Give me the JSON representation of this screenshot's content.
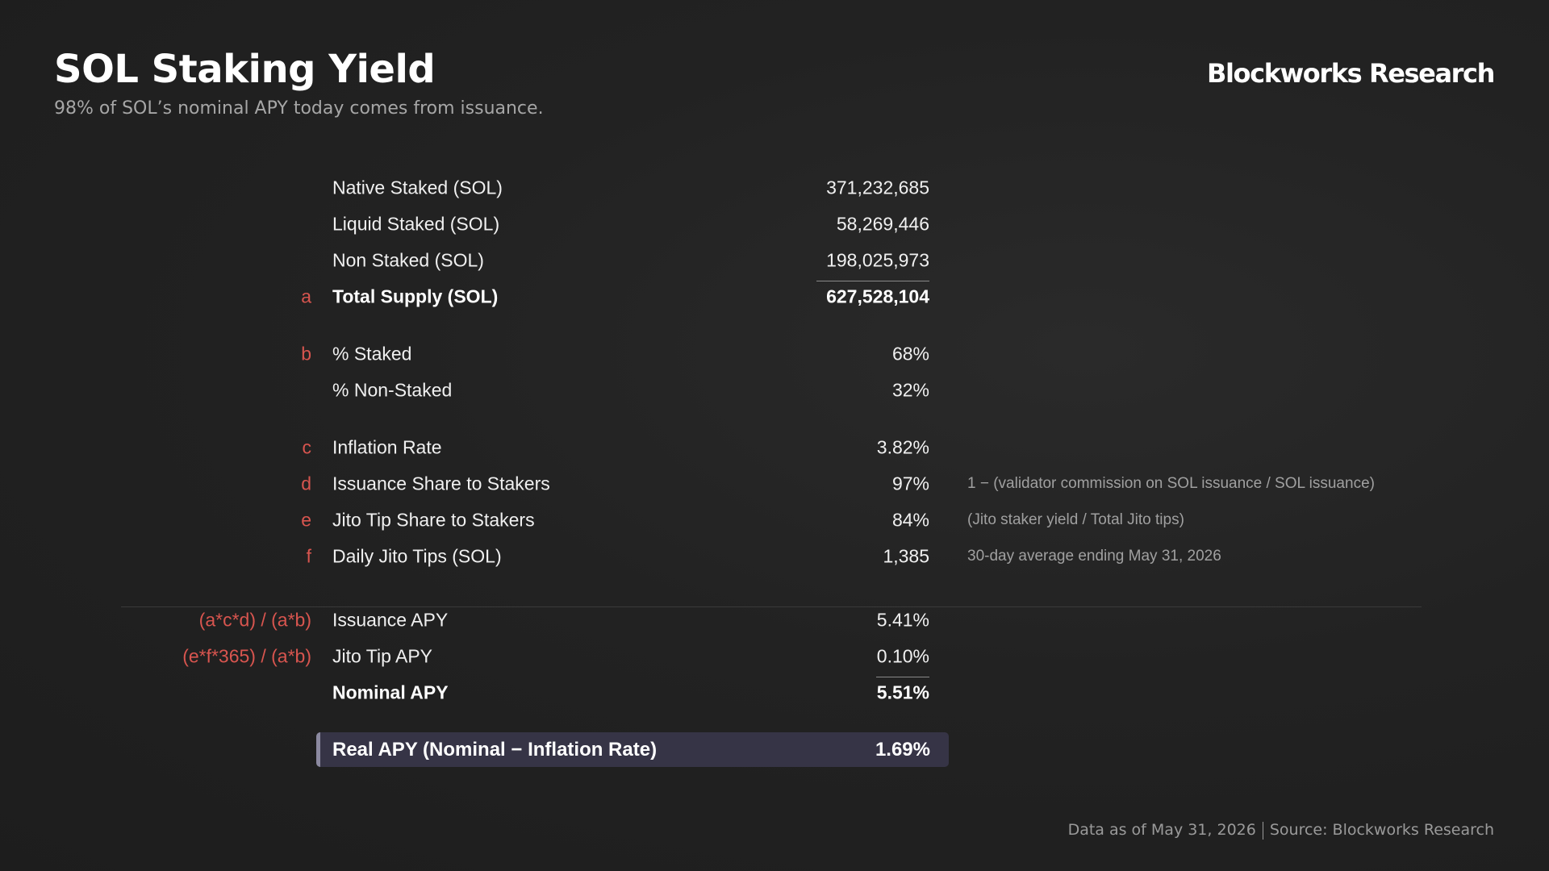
{
  "header": {
    "title": "SOL Staking Yield",
    "subtitle": "98% of SOL’s nominal APY today comes from issuance.",
    "brand": "Blockworks Research"
  },
  "rows": [
    {
      "tag": "",
      "label": "Native Staked (SOL)",
      "value": "371,232,685",
      "note": ""
    },
    {
      "tag": "",
      "label": "Liquid Staked (SOL)",
      "value": "58,269,446",
      "note": ""
    },
    {
      "tag": "",
      "label": "Non Staked (SOL)",
      "value": "198,025,973",
      "note": ""
    },
    {
      "tag": "a",
      "label": "Total Supply (SOL)",
      "value": "627,528,104",
      "note": ""
    },
    {
      "tag": "b",
      "label": "% Staked",
      "value": "68%",
      "note": ""
    },
    {
      "tag": "",
      "label": "% Non-Staked",
      "value": "32%",
      "note": ""
    },
    {
      "tag": "c",
      "label": "Inflation Rate",
      "value": "3.82%",
      "note": ""
    },
    {
      "tag": "d",
      "label": "Issuance Share to Stakers",
      "value": "97%",
      "note": "1 − (validator commission on SOL issuance / SOL issuance)"
    },
    {
      "tag": "e",
      "label": "Jito Tip Share to Stakers",
      "value": "84%",
      "note": "(Jito staker yield / Total Jito tips)"
    },
    {
      "tag": "f",
      "label": "Daily Jito Tips (SOL)",
      "value": "1,385",
      "note": "30-day average ending May 31, 2026"
    },
    {
      "tag": "(a*c*d) / (a*b)",
      "label": "Issuance APY",
      "value": "5.41%",
      "note": ""
    },
    {
      "tag": "(e*f*365) / (a*b)",
      "label": "Jito Tip APY",
      "value": "0.10%",
      "note": ""
    },
    {
      "tag": "",
      "label": "Nominal APY",
      "value": "5.51%",
      "note": ""
    }
  ],
  "highlight": {
    "label": "Real APY (Nominal − Inflation Rate)",
    "value": "1.69%"
  },
  "footer": {
    "date": "Data as of May 31, 2026",
    "source": "Source: Blockworks Research"
  }
}
